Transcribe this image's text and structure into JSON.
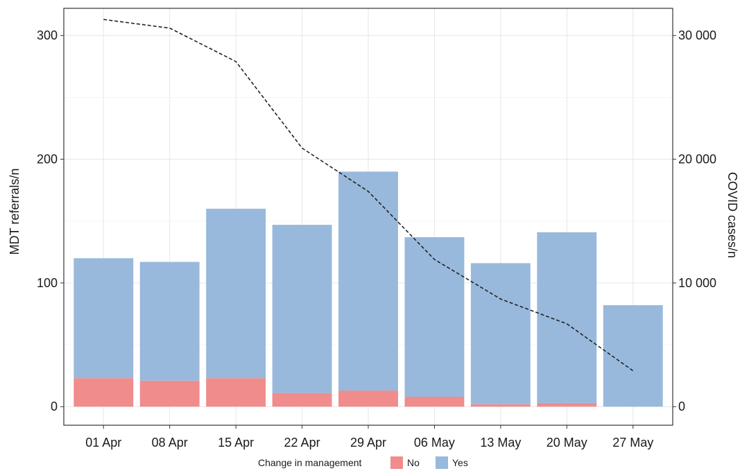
{
  "chart_data": {
    "type": "bar",
    "stacked": true,
    "categories": [
      "01 Apr",
      "08 Apr",
      "15 Apr",
      "22 Apr",
      "29 Apr",
      "06 May",
      "13 May",
      "20 May",
      "27 May"
    ],
    "series": [
      {
        "name": "No",
        "color": "#f08c8c",
        "values": [
          23,
          21,
          23,
          11,
          13,
          8,
          2,
          3,
          0
        ]
      },
      {
        "name": "Yes",
        "color": "#98b9dc",
        "values": [
          97,
          96,
          137,
          136,
          177,
          129,
          114,
          138,
          82
        ]
      }
    ],
    "line_series": {
      "axis": "right",
      "style": "dashed",
      "values": [
        31300,
        30600,
        27900,
        20900,
        17400,
        11900,
        8700,
        6700,
        2900
      ]
    },
    "ylabel": "MDT referrals/n",
    "y2label": "COVID cases/n",
    "ylim": [
      -15,
      322
    ],
    "yticks": [
      0,
      100,
      200,
      300
    ],
    "y2ticks": [
      0,
      10000,
      20000,
      30000
    ],
    "y2tick_labels": [
      "0",
      "10 000",
      "20 000",
      "30 000"
    ],
    "y2_scale": 100,
    "grid": true,
    "legend": {
      "title": "Change in management",
      "placement": "bottom",
      "entries": [
        "No",
        "Yes"
      ]
    }
  }
}
